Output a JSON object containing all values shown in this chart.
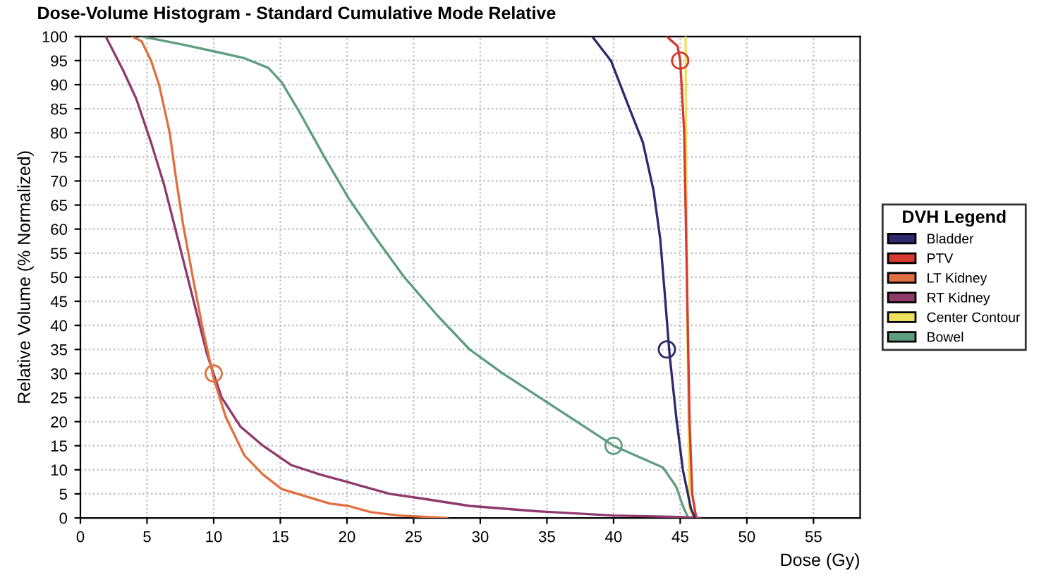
{
  "chart_data": {
    "type": "line",
    "title": "Dose-Volume Histogram - Standard Cumulative Mode Relative",
    "xlabel": "Dose (Gy)",
    "ylabel": "Relative Volume (% Normalized)",
    "legend_title": "DVH Legend",
    "legend": "right",
    "grid": true,
    "line_style": "solid",
    "xlim": [
      0,
      58.5
    ],
    "ylim": [
      0,
      100
    ],
    "xticks": [
      0,
      5,
      10,
      15,
      20,
      25,
      30,
      35,
      40,
      45,
      50,
      55
    ],
    "yticks": [
      0,
      5,
      10,
      15,
      20,
      25,
      30,
      35,
      40,
      45,
      50,
      55,
      60,
      65,
      70,
      75,
      80,
      85,
      90,
      95,
      100
    ],
    "series": [
      {
        "name": "Bladder",
        "color": "#2e2a6e",
        "x": [
          38.4,
          39.8,
          41.2,
          42.2,
          43.0,
          43.5,
          43.8,
          44.2,
          44.7,
          45.2,
          45.8,
          46.1
        ],
        "values": [
          100,
          95,
          85,
          78,
          68,
          58,
          48,
          34,
          21,
          10,
          2,
          0
        ]
      },
      {
        "name": "PTV",
        "color": "#d63a30",
        "x": [
          44,
          44.8,
          45,
          45.3,
          45.5,
          45.7,
          45.9,
          46.2
        ],
        "values": [
          100,
          98,
          95,
          80,
          50,
          20,
          5,
          0
        ]
      },
      {
        "name": "LT Kidney",
        "color": "#e07040",
        "x": [
          3.9,
          4.6,
          5.3,
          5.9,
          6.7,
          7.2,
          7.7,
          8.5,
          9.2,
          10,
          10.9,
          12.3,
          13.7,
          15.1,
          16.9,
          18.7,
          20.1,
          21.8,
          23.9,
          27.5
        ],
        "values": [
          100,
          99,
          95,
          90,
          80,
          70,
          61,
          49,
          39,
          29,
          21,
          13,
          9,
          6,
          4.5,
          3,
          2.5,
          1.2,
          0.5,
          0
        ]
      },
      {
        "name": "RT Kidney",
        "color": "#8e3a6a",
        "x": [
          1.9,
          3.2,
          4.2,
          5.3,
          6.3,
          7.4,
          8.5,
          9.5,
          10.6,
          12,
          13.7,
          15.8,
          18,
          20,
          23.2,
          25.7,
          29.2,
          34.2,
          40,
          45,
          46.5
        ],
        "values": [
          100,
          93,
          87,
          78,
          69,
          57,
          45,
          34,
          25,
          19,
          15,
          11,
          9,
          7.5,
          5,
          4,
          2.5,
          1.4,
          0.5,
          0.2,
          0
        ]
      },
      {
        "name": "Center Contour",
        "color": "#f0e060",
        "x": [
          45.4,
          45.5,
          45.7,
          46
        ],
        "values": [
          100,
          50,
          2,
          0
        ]
      },
      {
        "name": "Bowel",
        "color": "#5e9e80",
        "x": [
          4.6,
          7.4,
          9.9,
          12.3,
          14.1,
          15.1,
          16.5,
          18.3,
          20.1,
          22.2,
          24.3,
          26.8,
          29.2,
          31.7,
          34.2,
          40,
          43.7,
          44.7,
          45.2,
          45.6
        ],
        "values": [
          100,
          98.5,
          97,
          95.5,
          93.5,
          90.5,
          84,
          75,
          66.5,
          58,
          50,
          42,
          35,
          30,
          25.5,
          15,
          10.5,
          6.5,
          2.5,
          0
        ]
      },
      {
        "type": "scatter",
        "marker": "circle",
        "x": [
          10,
          45,
          44,
          40
        ],
        "values": [
          30,
          95,
          35,
          15
        ],
        "colors": [
          "#e07040",
          "#d63a30",
          "#2e2a6e",
          "#5e9e80"
        ]
      }
    ]
  }
}
